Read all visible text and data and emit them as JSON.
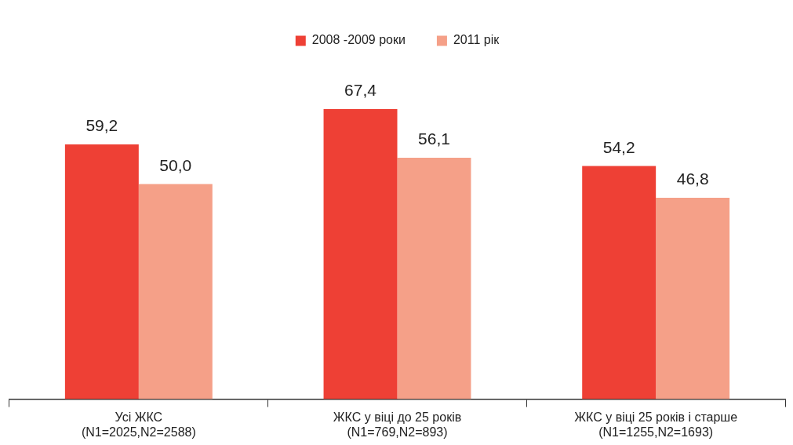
{
  "chart_data": {
    "type": "bar",
    "categories": [
      "Усі ЖКС\n(N1=2025,N2=2588)",
      "ЖКС у віці до 25 років\n(N1=769,N2=893)",
      "ЖКС у віці 25 років і старше\n(N1=1255,N2=1693)"
    ],
    "series": [
      {
        "name": "2008 -2009 роки",
        "color": "#ee4035",
        "values": [
          59.2,
          67.4,
          54.2
        ],
        "value_labels": [
          "59,2",
          "67,4",
          "54,2"
        ]
      },
      {
        "name": "2011 рік",
        "color": "#f5a088",
        "values": [
          50.0,
          56.1,
          46.8
        ],
        "value_labels": [
          "50,0",
          "56,1",
          "46,8"
        ]
      }
    ],
    "legend": "top",
    "grid": false,
    "tick_labels": "x"
  }
}
